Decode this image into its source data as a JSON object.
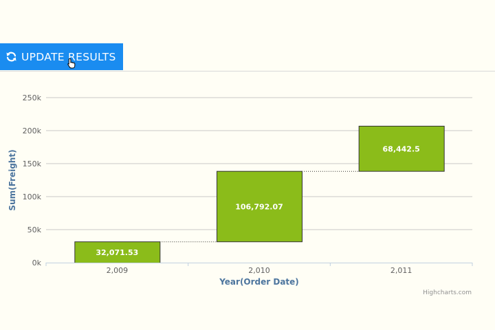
{
  "toolbar": {
    "update_label": "UPDATE RESULTS",
    "update_icon": "refresh-icon",
    "accent_color": "#1a8cf0"
  },
  "chart_data": {
    "type": "waterfall",
    "categories": [
      "2,009",
      "2,010",
      "2,011"
    ],
    "values": [
      32071.53,
      106792.07,
      68442.5
    ],
    "data_labels": [
      "32,071.53",
      "106,792.07",
      "68,442.5"
    ],
    "xlabel": "Year(Order Date)",
    "ylabel": "Sum(Freight)",
    "ylim": [
      0,
      250000
    ],
    "yticks": [
      {
        "value": 0,
        "label": "0k"
      },
      {
        "value": 50000,
        "label": "50k"
      },
      {
        "value": 100000,
        "label": "100k"
      },
      {
        "value": 150000,
        "label": "150k"
      },
      {
        "value": 200000,
        "label": "200k"
      },
      {
        "value": 250000,
        "label": "250k"
      }
    ],
    "grid": true,
    "bar_color": "#8bbc1a",
    "credit": "Highcharts.com"
  }
}
